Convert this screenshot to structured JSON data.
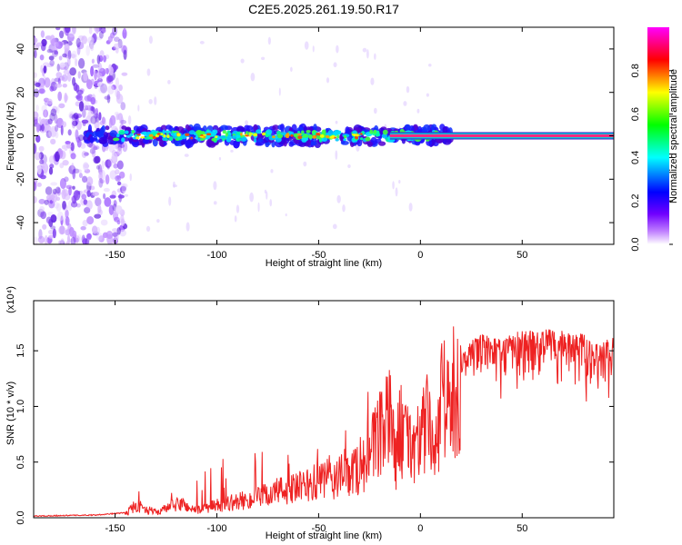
{
  "chart_data": [
    {
      "type": "heatmap",
      "title": "C2E5.2025.261.19.50.R17",
      "xlabel": "Height of straight line (km)",
      "ylabel": "Frequency (Hz)",
      "xlim": [
        -190,
        95
      ],
      "ylim": [
        -50,
        50
      ],
      "xticks": [
        -150,
        -100,
        -50,
        0,
        50
      ],
      "yticks": [
        -40,
        -20,
        0,
        20,
        40
      ],
      "colorbar": {
        "label": "Normalized spectral amplitude",
        "range": [
          0.0,
          1.0
        ],
        "ticks": [
          0.0,
          0.2,
          0.4,
          0.6,
          0.8
        ],
        "colormap": [
          "#ffffff",
          "#8000ff",
          "#0000ff",
          "#00ffff",
          "#00ff00",
          "#ffff00",
          "#ff0000",
          "#ff00ff"
        ]
      },
      "features": [
        {
          "name": "scattered-noise",
          "x_range": [
            -190,
            -145
          ],
          "frequency_range": [
            -50,
            50
          ],
          "amplitude": 0.05
        },
        {
          "name": "signal-band",
          "x_range": [
            -165,
            15
          ],
          "center_frequency": 0,
          "amplitude": 0.5
        },
        {
          "name": "narrow-tone",
          "x_range": [
            -15,
            95
          ],
          "frequency": 0,
          "amplitude": 1.0
        }
      ]
    },
    {
      "type": "line",
      "title": "",
      "xlabel": "Height of straight line (km)",
      "ylabel": "SNR (10 * v/v)",
      "ylabel_multiplier": "(x10⁴)",
      "xlim": [
        -190,
        95
      ],
      "ylim": [
        0,
        1.95
      ],
      "xticks": [
        -150,
        -100,
        -50,
        0,
        50
      ],
      "yticks": [
        0.0,
        0.5,
        1.0,
        1.5
      ],
      "series": [
        {
          "name": "SNR",
          "color": "#ee2222",
          "x": [
            -190,
            -160,
            -145,
            -140,
            -130,
            -118,
            -110,
            -100,
            -90,
            -80,
            -70,
            -60,
            -50,
            -40,
            -30,
            -25,
            -20,
            -15,
            -12,
            -10,
            -5,
            0,
            5,
            7,
            10,
            15,
            20,
            25,
            30,
            40,
            50,
            60,
            70,
            80,
            88,
            95
          ],
          "values": [
            0.01,
            0.02,
            0.04,
            0.14,
            0.06,
            0.16,
            0.08,
            0.14,
            0.18,
            0.22,
            0.3,
            0.33,
            0.4,
            0.45,
            0.55,
            0.7,
            0.9,
            1.1,
            0.7,
            1.0,
            0.8,
            0.9,
            1.1,
            0.6,
            1.2,
            1.35,
            1.45,
            1.6,
            1.65,
            1.6,
            1.7,
            1.7,
            1.68,
            1.65,
            1.55,
            1.65
          ]
        }
      ]
    }
  ]
}
